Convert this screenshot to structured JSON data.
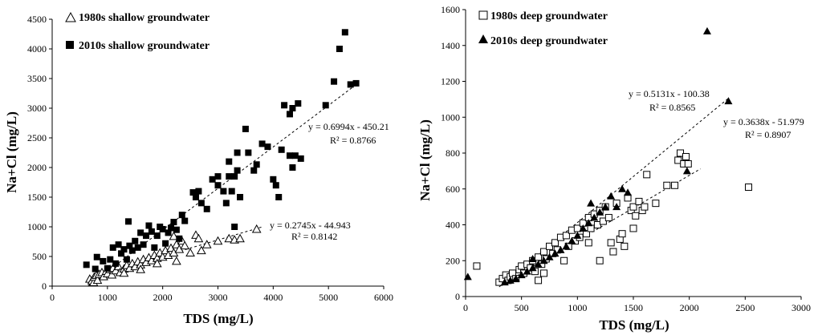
{
  "chart_data": [
    {
      "type": "scatter",
      "xlabel": "TDS (mg/L)",
      "ylabel": "Na+Cl (mg/L)",
      "xlim": [
        0,
        6000
      ],
      "ylim": [
        0,
        4500
      ],
      "xticks": [
        "0",
        "1000",
        "2000",
        "3000",
        "4000",
        "5000",
        "6000"
      ],
      "yticks": [
        "0",
        "500",
        "1000",
        "1500",
        "2000",
        "2500",
        "3000",
        "3500",
        "4000",
        "4500"
      ],
      "legend_position": "top-left",
      "series": [
        {
          "name": "1980s shallow groundwater",
          "marker": "open-triangle",
          "points": [
            [
              680,
              120
            ],
            [
              720,
              90
            ],
            [
              750,
              60
            ],
            [
              760,
              150
            ],
            [
              800,
              180
            ],
            [
              820,
              100
            ],
            [
              850,
              200
            ],
            [
              900,
              230
            ],
            [
              930,
              160
            ],
            [
              980,
              250
            ],
            [
              1000,
              210
            ],
            [
              1050,
              280
            ],
            [
              1080,
              190
            ],
            [
              1100,
              300
            ],
            [
              1150,
              260
            ],
            [
              1200,
              330
            ],
            [
              1230,
              230
            ],
            [
              1300,
              290
            ],
            [
              1350,
              350
            ],
            [
              1400,
              300
            ],
            [
              1450,
              380
            ],
            [
              1500,
              330
            ],
            [
              1550,
              410
            ],
            [
              1600,
              360
            ],
            [
              1650,
              450
            ],
            [
              1700,
              400
            ],
            [
              1750,
              480
            ],
            [
              1800,
              430
            ],
            [
              1850,
              520
            ],
            [
              1900,
              470
            ],
            [
              1950,
              560
            ],
            [
              2000,
              490
            ],
            [
              2050,
              600
            ],
            [
              2100,
              520
            ],
            [
              2150,
              640
            ],
            [
              2200,
              560
            ],
            [
              2250,
              700
            ],
            [
              2300,
              620
            ],
            [
              2350,
              760
            ],
            [
              2200,
              840
            ],
            [
              2400,
              680
            ],
            [
              2500,
              560
            ],
            [
              2600,
              860
            ],
            [
              2650,
              800
            ],
            [
              2700,
              600
            ],
            [
              2800,
              700
            ],
            [
              3000,
              760
            ],
            [
              3200,
              800
            ],
            [
              3300,
              780
            ],
            [
              3400,
              800
            ],
            [
              3700,
              960
            ],
            [
              2250,
              420
            ],
            [
              1900,
              380
            ],
            [
              1600,
              280
            ],
            [
              1300,
              220
            ]
          ],
          "fit": {
            "slope": 0.2745,
            "intercept": -44.943,
            "x_range": [
              650,
              3800
            ],
            "equation": "y = 0.2745x - 44.943",
            "r2": "R² = 0.8142"
          }
        },
        {
          "name": "2010s shallow groundwater",
          "marker": "filled-square",
          "points": [
            [
              620,
              360
            ],
            [
              780,
              290
            ],
            [
              810,
              490
            ],
            [
              920,
              420
            ],
            [
              1000,
              300
            ],
            [
              1050,
              450
            ],
            [
              1100,
              650
            ],
            [
              1150,
              380
            ],
            [
              1200,
              700
            ],
            [
              1250,
              550
            ],
            [
              1300,
              620
            ],
            [
              1350,
              450
            ],
            [
              1380,
              1090
            ],
            [
              1400,
              680
            ],
            [
              1450,
              600
            ],
            [
              1500,
              760
            ],
            [
              1550,
              650
            ],
            [
              1600,
              900
            ],
            [
              1650,
              700
            ],
            [
              1700,
              850
            ],
            [
              1750,
              1020
            ],
            [
              1800,
              920
            ],
            [
              1850,
              650
            ],
            [
              1900,
              850
            ],
            [
              1950,
              1000
            ],
            [
              2000,
              960
            ],
            [
              2050,
              720
            ],
            [
              2100,
              900
            ],
            [
              2150,
              980
            ],
            [
              2200,
              1080
            ],
            [
              2250,
              950
            ],
            [
              2300,
              800
            ],
            [
              2350,
              1200
            ],
            [
              2400,
              1100
            ],
            [
              2550,
              1580
            ],
            [
              2600,
              1500
            ],
            [
              2700,
              1400
            ],
            [
              2800,
              1300
            ],
            [
              2900,
              1800
            ],
            [
              3000,
              1700
            ],
            [
              3100,
              1600
            ],
            [
              3150,
              1400
            ],
            [
              3200,
              1850
            ],
            [
              3250,
              1600
            ],
            [
              3300,
              1850
            ],
            [
              3350,
              1950
            ],
            [
              3400,
              1500
            ],
            [
              3500,
              2650
            ],
            [
              3550,
              2250
            ],
            [
              3650,
              1950
            ],
            [
              3700,
              2050
            ],
            [
              3800,
              2400
            ],
            [
              3900,
              2350
            ],
            [
              4000,
              1800
            ],
            [
              4100,
              1500
            ],
            [
              4050,
              1700
            ],
            [
              4200,
              3050
            ],
            [
              4300,
              2900
            ],
            [
              4350,
              3000
            ],
            [
              4400,
              2200
            ],
            [
              4450,
              3080
            ],
            [
              4500,
              2150
            ],
            [
              4950,
              3050
            ],
            [
              5100,
              3450
            ],
            [
              5200,
              4000
            ],
            [
              5300,
              4280
            ],
            [
              5400,
              3400
            ],
            [
              5500,
              3420
            ],
            [
              3300,
              1000
            ],
            [
              3350,
              2250
            ],
            [
              3200,
              2100
            ],
            [
              2650,
              1600
            ],
            [
              3000,
              1850
            ],
            [
              4150,
              2300
            ],
            [
              4300,
              2200
            ],
            [
              4350,
              2000
            ]
          ],
          "fit": {
            "slope": 0.6994,
            "intercept": -450.21,
            "x_range": [
              650,
              5450
            ],
            "equation": "y = 0.6994x - 450.21",
            "r2": "R² = 0.8766"
          }
        }
      ]
    },
    {
      "type": "scatter",
      "xlabel": "TDS (mg/L)",
      "ylabel": "Na+Cl (mg/L)",
      "xlim": [
        0,
        3000
      ],
      "ylim": [
        0,
        1600
      ],
      "xticks": [
        "0",
        "500",
        "1000",
        "1500",
        "2000",
        "2500",
        "3000"
      ],
      "yticks": [
        "0",
        "200",
        "400",
        "600",
        "800",
        "1000",
        "1200",
        "1400",
        "1600"
      ],
      "legend_position": "top-left",
      "series": [
        {
          "name": "1980s deep groundwater",
          "marker": "open-square",
          "points": [
            [
              100,
              170
            ],
            [
              300,
              80
            ],
            [
              330,
              100
            ],
            [
              360,
              120
            ],
            [
              380,
              90
            ],
            [
              400,
              110
            ],
            [
              420,
              130
            ],
            [
              450,
              100
            ],
            [
              480,
              150
            ],
            [
              500,
              170
            ],
            [
              520,
              130
            ],
            [
              550,
              180
            ],
            [
              580,
              160
            ],
            [
              600,
              200
            ],
            [
              620,
              140
            ],
            [
              650,
              220
            ],
            [
              680,
              180
            ],
            [
              700,
              250
            ],
            [
              720,
              210
            ],
            [
              750,
              280
            ],
            [
              780,
              240
            ],
            [
              800,
              300
            ],
            [
              820,
              260
            ],
            [
              850,
              330
            ],
            [
              880,
              200
            ],
            [
              900,
              340
            ],
            [
              920,
              280
            ],
            [
              950,
              370
            ],
            [
              980,
              310
            ],
            [
              1000,
              380
            ],
            [
              1020,
              330
            ],
            [
              1050,
              410
            ],
            [
              1080,
              350
            ],
            [
              1100,
              440
            ],
            [
              1120,
              380
            ],
            [
              1150,
              460
            ],
            [
              1180,
              400
            ],
            [
              1200,
              480
            ],
            [
              1230,
              420
            ],
            [
              1250,
              500
            ],
            [
              1280,
              440
            ],
            [
              1300,
              300
            ],
            [
              1320,
              250
            ],
            [
              1350,
              520
            ],
            [
              1380,
              320
            ],
            [
              1400,
              350
            ],
            [
              1420,
              280
            ],
            [
              1450,
              550
            ],
            [
              1480,
              480
            ],
            [
              1500,
              500
            ],
            [
              1520,
              450
            ],
            [
              1550,
              530
            ],
            [
              1580,
              480
            ],
            [
              1600,
              500
            ],
            [
              1620,
              680
            ],
            [
              1700,
              520
            ],
            [
              1800,
              620
            ],
            [
              1870,
              620
            ],
            [
              1900,
              760
            ],
            [
              1920,
              800
            ],
            [
              1950,
              740
            ],
            [
              1970,
              780
            ],
            [
              1990,
              740
            ],
            [
              2530,
              610
            ],
            [
              1500,
              380
            ],
            [
              1200,
              200
            ],
            [
              1100,
              300
            ],
            [
              700,
              130
            ],
            [
              650,
              90
            ]
          ],
          "fit": {
            "slope": 0.3638,
            "intercept": -51.979,
            "x_range": [
              350,
              2100
            ],
            "equation": "y = 0.3638x - 51.979",
            "r2": "R² = 0.8907"
          }
        },
        {
          "name": "2010s deep groundwater",
          "marker": "filled-triangle",
          "points": [
            [
              20,
              110
            ],
            [
              350,
              80
            ],
            [
              400,
              90
            ],
            [
              450,
              100
            ],
            [
              500,
              120
            ],
            [
              550,
              140
            ],
            [
              600,
              160
            ],
            [
              650,
              180
            ],
            [
              700,
              200
            ],
            [
              750,
              220
            ],
            [
              800,
              240
            ],
            [
              850,
              260
            ],
            [
              900,
              280
            ],
            [
              950,
              310
            ],
            [
              1000,
              340
            ],
            [
              1050,
              380
            ],
            [
              1100,
              410
            ],
            [
              1150,
              440
            ],
            [
              1200,
              470
            ],
            [
              1250,
              500
            ],
            [
              1300,
              560
            ],
            [
              1350,
              500
            ],
            [
              1400,
              600
            ],
            [
              1450,
              580
            ],
            [
              1980,
              700
            ],
            [
              2160,
              1480
            ],
            [
              2350,
              1090
            ],
            [
              600,
              210
            ],
            [
              1120,
              520
            ]
          ],
          "fit": {
            "slope": 0.5131,
            "intercept": -100.38,
            "x_range": [
              300,
              2350
            ],
            "equation": "y = 0.5131x - 100.38",
            "r2": "R² = 0.8565"
          }
        }
      ]
    }
  ]
}
